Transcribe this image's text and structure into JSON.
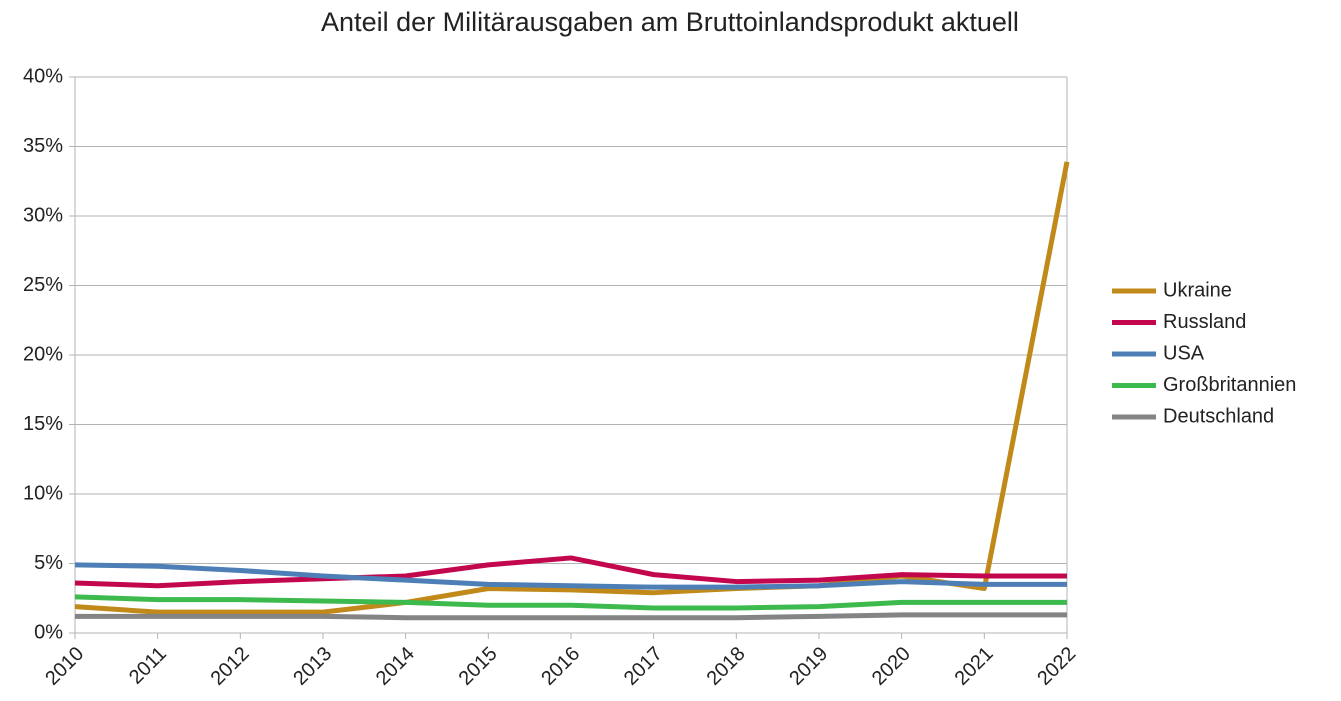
{
  "chart_data": {
    "type": "line",
    "title": "Anteil der Militärausgaben am Bruttoinlandsprodukt aktuell",
    "categories": [
      "2010",
      "2011",
      "2012",
      "2013",
      "2014",
      "2015",
      "2016",
      "2017",
      "2018",
      "2019",
      "2020",
      "2021",
      "2022"
    ],
    "series": [
      {
        "name": "Ukraine",
        "color": "#c0891a",
        "values": [
          1.9,
          1.5,
          1.5,
          1.5,
          2.2,
          3.2,
          3.1,
          2.9,
          3.2,
          3.4,
          4.1,
          3.2,
          33.9
        ]
      },
      {
        "name": "Russland",
        "color": "#c2074f",
        "values": [
          3.6,
          3.4,
          3.7,
          3.9,
          4.1,
          4.9,
          5.4,
          4.2,
          3.7,
          3.8,
          4.2,
          4.1,
          4.1
        ]
      },
      {
        "name": "USA",
        "color": "#4d7fb6",
        "values": [
          4.9,
          4.8,
          4.5,
          4.1,
          3.8,
          3.5,
          3.4,
          3.3,
          3.3,
          3.4,
          3.7,
          3.5,
          3.5
        ]
      },
      {
        "name": "Großbritannien",
        "color": "#3dba4e",
        "values": [
          2.6,
          2.4,
          2.4,
          2.3,
          2.2,
          2.0,
          2.0,
          1.8,
          1.8,
          1.9,
          2.2,
          2.2,
          2.2
        ]
      },
      {
        "name": "Deutschland",
        "color": "#848484",
        "values": [
          1.2,
          1.2,
          1.2,
          1.2,
          1.1,
          1.1,
          1.1,
          1.1,
          1.1,
          1.2,
          1.3,
          1.3,
          1.3
        ]
      }
    ],
    "ylim": [
      0,
      40
    ],
    "yticks": [
      {
        "value": 0,
        "label": "0%"
      },
      {
        "value": 5,
        "label": "5%"
      },
      {
        "value": 10,
        "label": "10%"
      },
      {
        "value": 15,
        "label": "15%"
      },
      {
        "value": 20,
        "label": "20%"
      },
      {
        "value": 25,
        "label": "25%"
      },
      {
        "value": 30,
        "label": "30%"
      },
      {
        "value": 35,
        "label": "35%"
      },
      {
        "value": 40,
        "label": "40%"
      }
    ],
    "grid": true,
    "legend": "right"
  }
}
